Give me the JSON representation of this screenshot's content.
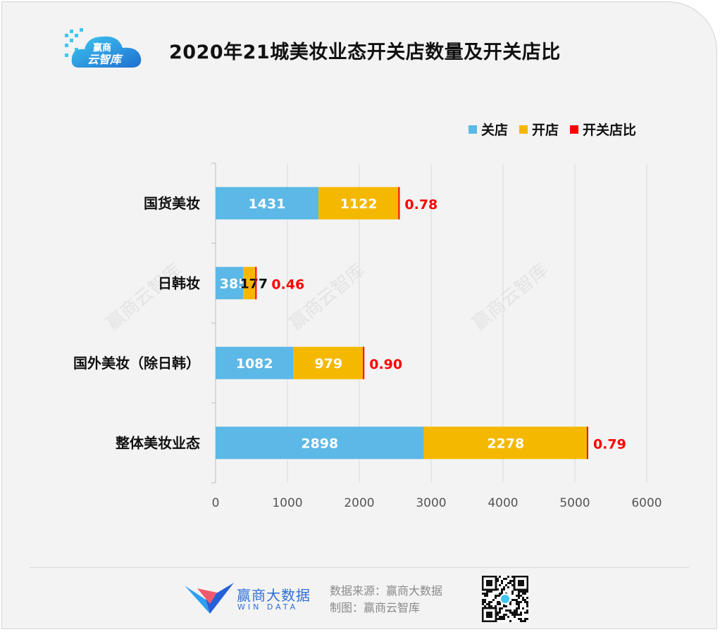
{
  "header": {
    "title": "2020年21城美妆业态开关店数量及开关店比",
    "logo_top_text": "赢商",
    "logo_bottom_text": "云智库"
  },
  "legend": [
    {
      "label": "关店",
      "color": "#5cb8e6"
    },
    {
      "label": "开店",
      "color": "#f5b800"
    },
    {
      "label": "开关店比",
      "color": "#ff0000"
    }
  ],
  "chart_data": {
    "type": "bar",
    "orientation": "horizontal",
    "stacked": true,
    "title": "2020年21城美妆业态开关店数量及开关店比",
    "categories": [
      "国货美妆",
      "日韩妆",
      "国外美妆（除日韩）",
      "整体美妆业态"
    ],
    "series": [
      {
        "name": "关店",
        "values": [
          1431,
          385,
          1082,
          2898
        ],
        "color": "#5cb8e6"
      },
      {
        "name": "开店",
        "values": [
          1122,
          177,
          979,
          2278
        ],
        "color": "#f5b800"
      }
    ],
    "ratio": {
      "name": "开关店比",
      "values": [
        "0.78",
        "0.46",
        "0.90",
        "0.79"
      ],
      "color": "#ff0000"
    },
    "xlim": [
      0,
      6000
    ],
    "xticks": [
      "0",
      "1000",
      "2000",
      "3000",
      "4000",
      "5000",
      "6000"
    ],
    "grid": "vertical",
    "legend_position": "top-right"
  },
  "watermark": "赢商云智库",
  "footer": {
    "brand_name": "赢商大数据",
    "brand_sub": "WIN DATA",
    "source_line": "数据来源：赢商大数据",
    "made_by_line": "制图：赢商云智库"
  }
}
